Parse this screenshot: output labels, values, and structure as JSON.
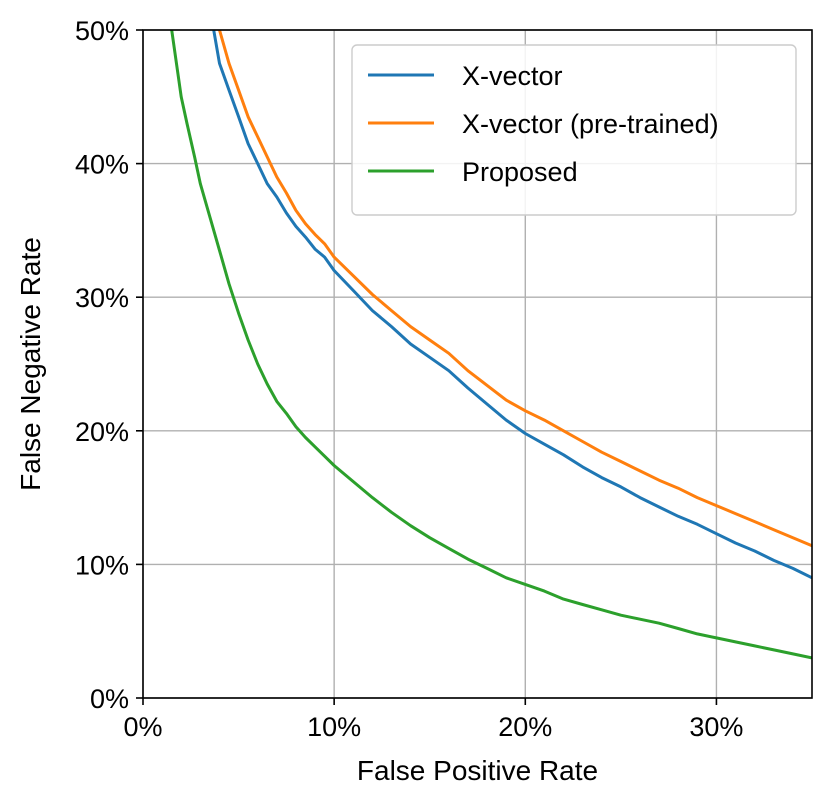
{
  "chart_data": {
    "type": "line",
    "xlabel": "False Positive Rate",
    "ylabel": "False Negative Rate",
    "xlim": [
      0,
      35
    ],
    "ylim": [
      0,
      50
    ],
    "xticks": [
      0,
      10,
      20,
      30
    ],
    "xtick_labels": [
      "0%",
      "10%",
      "20%",
      "30%"
    ],
    "yticks": [
      0,
      10,
      20,
      30,
      40,
      50
    ],
    "ytick_labels": [
      "0%",
      "10%",
      "20%",
      "30%",
      "40%",
      "50%"
    ],
    "grid": true,
    "legend_position": "top-right",
    "series": [
      {
        "name": "X-vector",
        "color": "#1f77b4",
        "x": [
          3.7,
          4.0,
          4.5,
          5.0,
          5.5,
          6.0,
          6.5,
          7.0,
          7.5,
          8.0,
          8.5,
          9.0,
          9.5,
          10.0,
          11.0,
          12.0,
          13.0,
          14.0,
          15.0,
          16.0,
          17.0,
          18.0,
          19.0,
          20.0,
          21.0,
          22.0,
          23.0,
          24.0,
          25.0,
          26.0,
          27.0,
          28.0,
          29.0,
          30.0,
          31.0,
          32.0,
          33.0,
          34.0,
          35.0
        ],
        "y": [
          50.0,
          47.5,
          45.5,
          43.5,
          41.5,
          40.0,
          38.5,
          37.5,
          36.3,
          35.3,
          34.5,
          33.6,
          33.0,
          32.0,
          30.5,
          29.0,
          27.8,
          26.5,
          25.5,
          24.5,
          23.2,
          22.0,
          20.8,
          19.8,
          19.0,
          18.2,
          17.3,
          16.5,
          15.8,
          15.0,
          14.3,
          13.6,
          13.0,
          12.3,
          11.6,
          11.0,
          10.3,
          9.7,
          9.0
        ]
      },
      {
        "name": "X-vector (pre-trained)",
        "color": "#ff7f0e",
        "x": [
          4.0,
          4.5,
          5.0,
          5.5,
          6.0,
          6.5,
          7.0,
          7.5,
          8.0,
          8.5,
          9.0,
          9.5,
          10.0,
          11.0,
          12.0,
          13.0,
          14.0,
          15.0,
          16.0,
          17.0,
          18.0,
          19.0,
          20.0,
          21.0,
          22.0,
          23.0,
          24.0,
          25.0,
          26.0,
          27.0,
          28.0,
          29.0,
          30.0,
          31.0,
          32.0,
          33.0,
          34.0,
          35.0
        ],
        "y": [
          50.0,
          47.5,
          45.5,
          43.5,
          42.0,
          40.5,
          39.0,
          37.8,
          36.5,
          35.5,
          34.7,
          34.0,
          33.0,
          31.6,
          30.2,
          29.0,
          27.8,
          26.8,
          25.8,
          24.5,
          23.4,
          22.3,
          21.5,
          20.8,
          20.0,
          19.2,
          18.4,
          17.7,
          17.0,
          16.3,
          15.7,
          15.0,
          14.4,
          13.8,
          13.2,
          12.6,
          12.0,
          11.4
        ]
      },
      {
        "name": "Proposed",
        "color": "#2ca02c",
        "x": [
          1.5,
          1.8,
          2.0,
          2.3,
          2.7,
          3.0,
          3.5,
          4.0,
          4.5,
          5.0,
          5.5,
          6.0,
          6.5,
          7.0,
          7.5,
          8.0,
          8.5,
          9.0,
          9.5,
          10.0,
          11.0,
          12.0,
          13.0,
          14.0,
          15.0,
          16.0,
          17.0,
          18.0,
          19.0,
          20.0,
          21.0,
          22.0,
          23.0,
          24.0,
          25.0,
          26.0,
          27.0,
          28.0,
          29.0,
          30.0,
          31.0,
          32.0,
          33.0,
          34.0,
          35.0
        ],
        "y": [
          50.0,
          47.0,
          45.0,
          43.0,
          40.5,
          38.5,
          36.0,
          33.5,
          31.0,
          28.8,
          26.8,
          25.0,
          23.5,
          22.2,
          21.3,
          20.3,
          19.5,
          18.8,
          18.1,
          17.4,
          16.2,
          15.0,
          13.9,
          12.9,
          12.0,
          11.2,
          10.4,
          9.7,
          9.0,
          8.5,
          8.0,
          7.4,
          7.0,
          6.6,
          6.2,
          5.9,
          5.6,
          5.2,
          4.8,
          4.5,
          4.2,
          3.9,
          3.6,
          3.3,
          3.0
        ]
      }
    ]
  }
}
